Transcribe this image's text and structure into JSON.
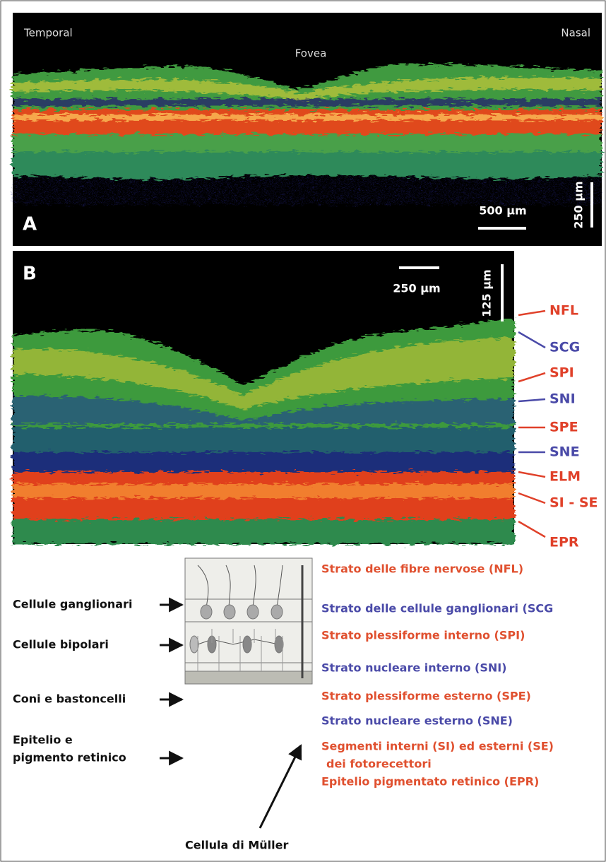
{
  "panel_a": {
    "label": "A",
    "temporal": "Temporal",
    "nasal": "Nasal",
    "fovea": "Fovea",
    "scale_horizontal": "500 µm",
    "scale_vertical": "250 µm"
  },
  "panel_b": {
    "label": "B",
    "scale_horizontal": "250 µm",
    "scale_vertical": "125 µm",
    "layers": [
      {
        "label": "NFL",
        "color": "#e0412a"
      },
      {
        "label": "SCG",
        "color": "#4a4aa8"
      },
      {
        "label": "SPI",
        "color": "#e0412a"
      },
      {
        "label": "SNI",
        "color": "#4a4aa8"
      },
      {
        "label": "SPE",
        "color": "#e0412a"
      },
      {
        "label": "SNE",
        "color": "#4a4aa8"
      },
      {
        "label": "ELM",
        "color": "#e0412a"
      },
      {
        "label": "SI - SE",
        "color": "#e0412a"
      },
      {
        "label": "EPR",
        "color": "#e0412a"
      }
    ]
  },
  "legend": {
    "left_labels": [
      [
        "Cellule ganglionari"
      ],
      [
        "Cellule bipolari"
      ],
      [
        "Coni e bastoncelli"
      ],
      [
        "Epitelio e",
        "pigmento retinico"
      ]
    ],
    "layers": [
      {
        "label": "Strato delle fibre nervose (NFL)",
        "color": "#e0502f"
      },
      {
        "label": "Strato delle cellule ganglionari (SCG",
        "color": "#4a4aa8"
      },
      {
        "label": "Strato plessiforme interno (SPI)",
        "color": "#e0502f"
      },
      {
        "label": "Strato nucleare interno (SNI)",
        "color": "#4a4aa8"
      },
      {
        "label": "Strato plessiforme esterno (SPE)",
        "color": "#e0502f"
      },
      {
        "label": "Strato nucleare esterno (SNE)",
        "color": "#4a4aa8"
      },
      {
        "label": "Segmenti interni (SI) ed esterni (SE)",
        "color": "#e0502f"
      },
      {
        "label": "dei fotorecettori",
        "color": "#e0502f"
      },
      {
        "label": "Epitelio pigmentato retinico (EPR)",
        "color": "#e0502f"
      }
    ],
    "muller": "Cellula di Müller"
  }
}
